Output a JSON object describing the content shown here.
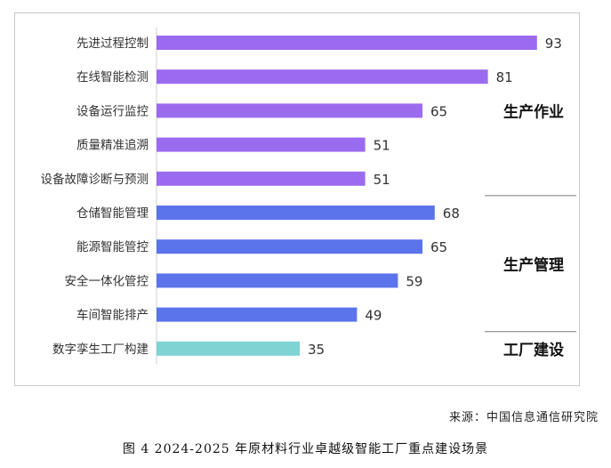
{
  "chart_data": {
    "type": "bar",
    "orientation": "horizontal",
    "categories": [
      "先进过程控制",
      "在线智能检测",
      "设备运行监控",
      "质量精准追溯",
      "设备故障诊断与预测",
      "仓储智能管理",
      "能源智能管控",
      "安全一体化管控",
      "车间智能排产",
      "数字孪生工厂构建"
    ],
    "values": [
      93,
      81,
      65,
      51,
      51,
      68,
      65,
      59,
      49,
      35
    ],
    "groups": [
      {
        "name": "生产作业",
        "start": 0,
        "end": 4,
        "color": "#9b6bef"
      },
      {
        "name": "生产管理",
        "start": 5,
        "end": 8,
        "color": "#5b74ec"
      },
      {
        "name": "工厂建设",
        "start": 9,
        "end": 9,
        "color": "#7fd3d3"
      }
    ],
    "xlim": [
      0,
      100
    ],
    "grid": false,
    "legend": "none"
  },
  "source": "来源：中国信息通信研究院",
  "caption": "图 4 2024-2025 年原材料行业卓越级智能工厂重点建设场景"
}
